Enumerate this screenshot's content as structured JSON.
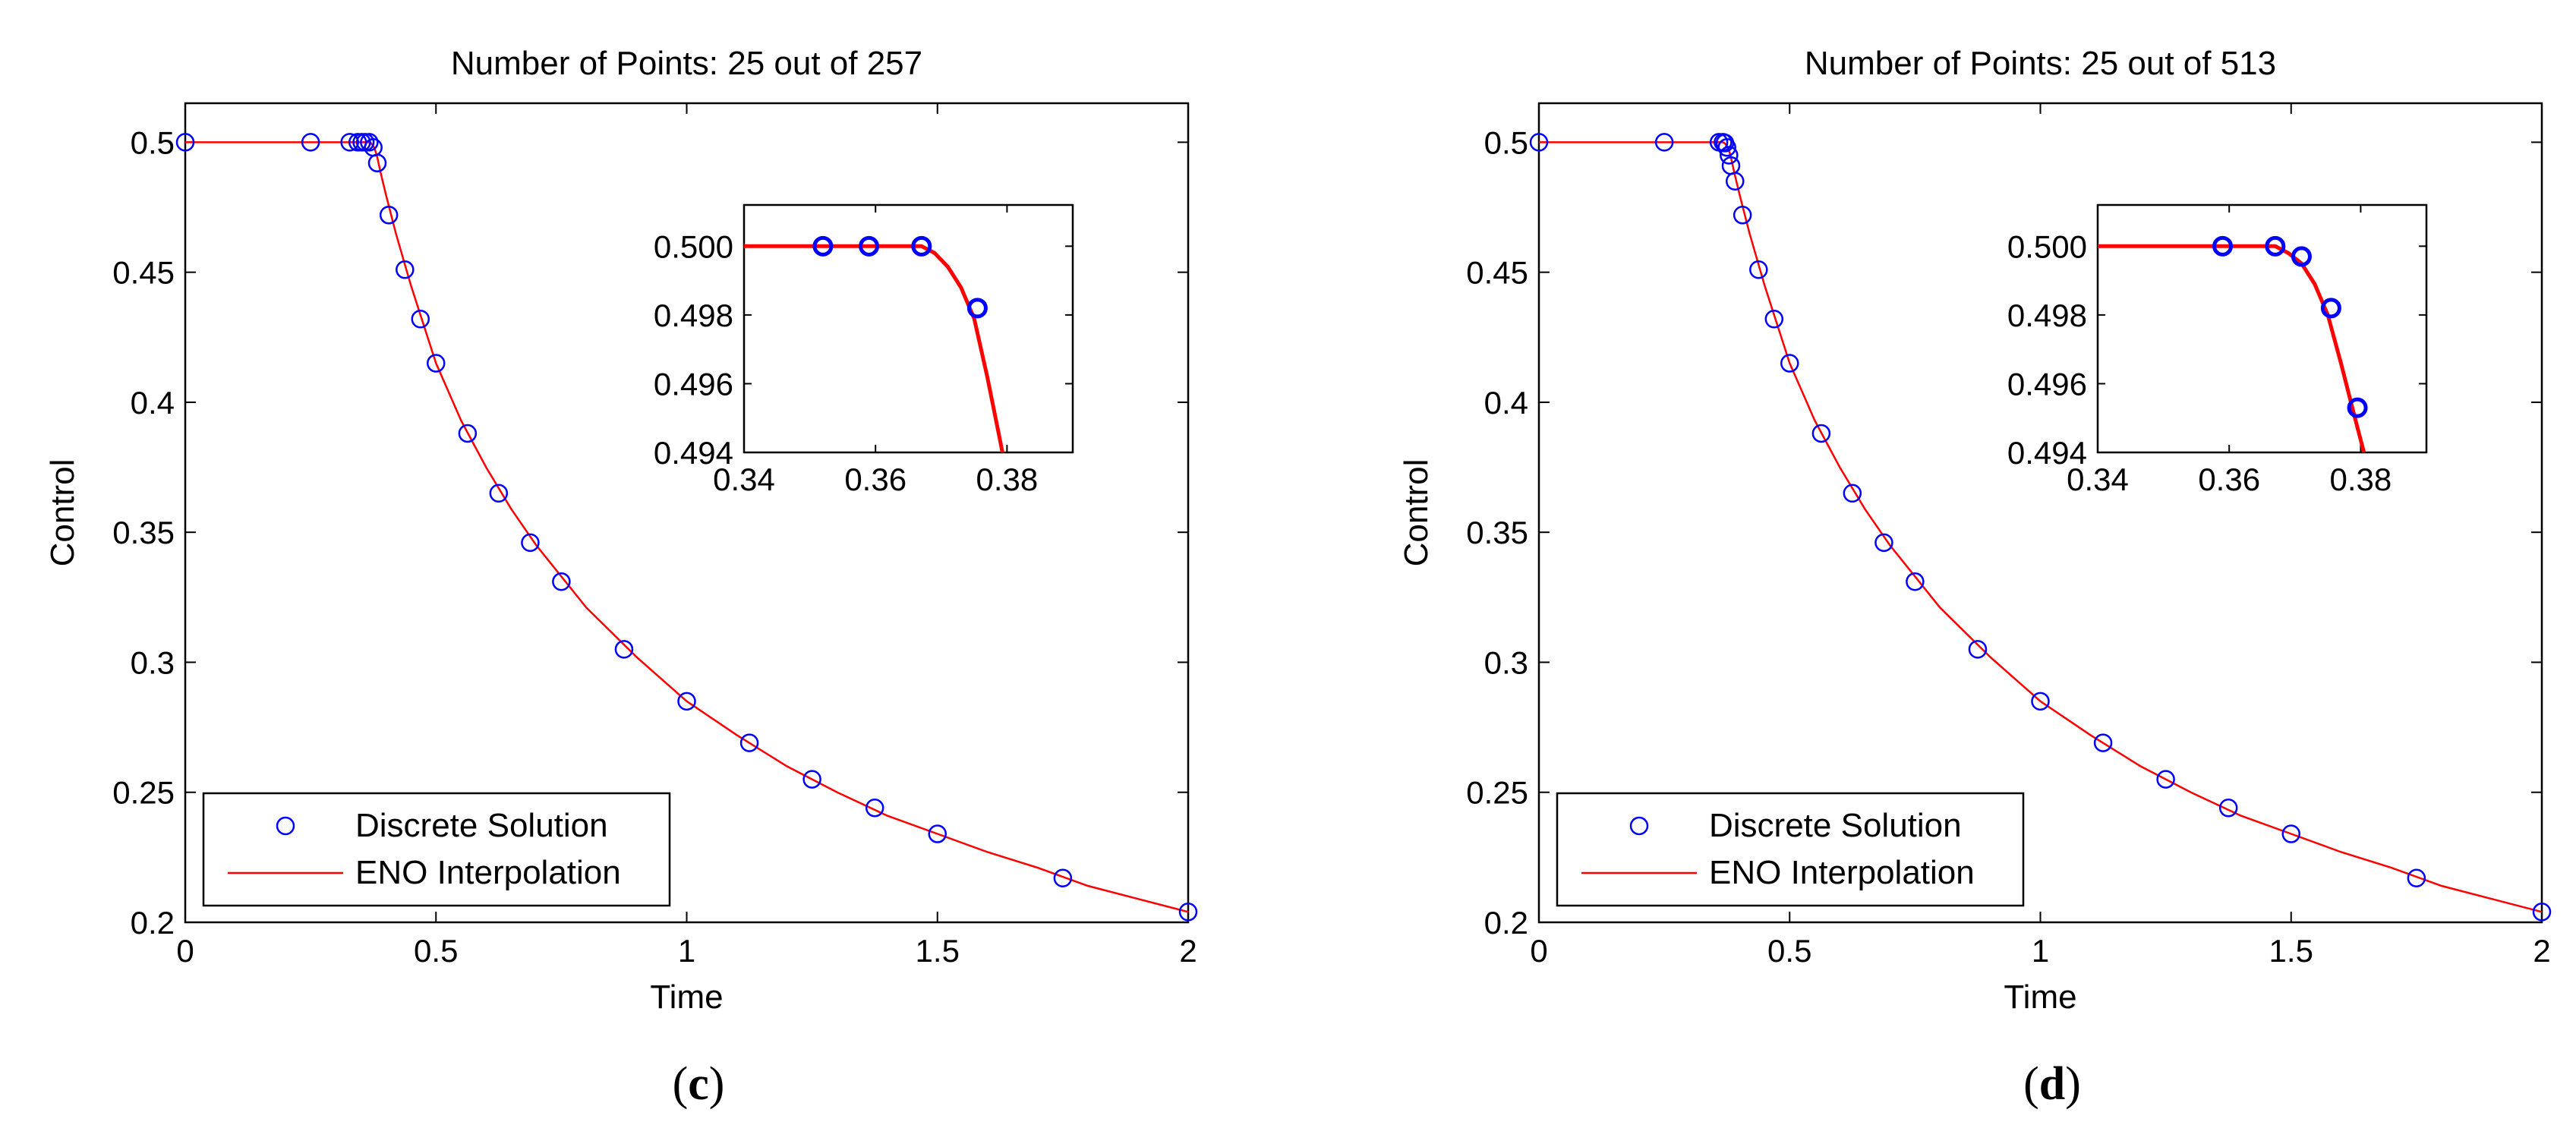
{
  "chart_data": [
    {
      "type": "line",
      "title": "Number of Points: 25 out of 257",
      "xlabel": "Time",
      "ylabel": "Control",
      "xlim": [
        0,
        2
      ],
      "ylim": [
        0.2,
        0.515
      ],
      "xticks": [
        "0",
        "0.5",
        "1",
        "1.5",
        "2"
      ],
      "yticks": [
        "0.2",
        "0.25",
        "0.3",
        "0.35",
        "0.4",
        "0.45",
        "0.5"
      ],
      "caption_open": "(",
      "caption_letter": "c",
      "caption_close": ")",
      "legend": {
        "placement": "bottom-left",
        "markers_label": "Discrete Solution",
        "line_label": "ENO Interpolation"
      },
      "series": [
        {
          "name": "Discrete Solution",
          "style": "markers",
          "color": "#0000ff",
          "x": [
            0,
            0.25,
            0.328,
            0.344,
            0.352,
            0.359,
            0.367,
            0.375,
            0.383,
            0.406,
            0.438,
            0.469,
            0.5,
            0.563,
            0.625,
            0.688,
            0.75,
            0.875,
            1.0,
            1.125,
            1.25,
            1.375,
            1.5,
            1.75,
            2.0
          ],
          "y": [
            0.5,
            0.5,
            0.5,
            0.5,
            0.5,
            0.5,
            0.5,
            0.498,
            0.492,
            0.472,
            0.451,
            0.432,
            0.415,
            0.388,
            0.365,
            0.346,
            0.331,
            0.305,
            0.285,
            0.269,
            0.255,
            0.244,
            0.234,
            0.217,
            0.204
          ]
        },
        {
          "name": "ENO Interpolation",
          "style": "line",
          "color": "#ff0000",
          "x": [
            0,
            0.2,
            0.367,
            0.37,
            0.373,
            0.376,
            0.379,
            0.382,
            0.39,
            0.4,
            0.42,
            0.45,
            0.5,
            0.55,
            0.6,
            0.65,
            0.7,
            0.8,
            0.9,
            1.0,
            1.1,
            1.2,
            1.3,
            1.4,
            1.5,
            1.6,
            1.7,
            1.8,
            1.9,
            2.0
          ],
          "y": [
            0.5,
            0.5,
            0.5,
            0.4997,
            0.4991,
            0.4982,
            0.4968,
            0.495,
            0.488,
            0.48,
            0.465,
            0.445,
            0.415,
            0.393,
            0.375,
            0.359,
            0.345,
            0.321,
            0.302,
            0.285,
            0.272,
            0.26,
            0.25,
            0.241,
            0.234,
            0.227,
            0.221,
            0.214,
            0.209,
            0.204
          ]
        }
      ],
      "inset": {
        "xlim": [
          0.34,
          0.39
        ],
        "ylim": [
          0.494,
          0.5012
        ],
        "xticks": [
          "0.34",
          "0.36",
          "0.38"
        ],
        "yticks": [
          "0.494",
          "0.496",
          "0.498",
          "0.500"
        ],
        "points": {
          "x": [
            0.352,
            0.359,
            0.367,
            0.3755
          ],
          "y": [
            0.5,
            0.5,
            0.5,
            0.4982
          ]
        },
        "line": {
          "x": [
            0.34,
            0.367,
            0.369,
            0.371,
            0.373,
            0.375,
            0.377,
            0.379,
            0.3795
          ],
          "y": [
            0.5,
            0.5,
            0.4998,
            0.4994,
            0.4988,
            0.4979,
            0.4962,
            0.4943,
            0.4938
          ]
        }
      }
    },
    {
      "type": "line",
      "title": "Number of Points: 25 out of 513",
      "xlabel": "Time",
      "ylabel": "Control",
      "xlim": [
        0,
        2
      ],
      "ylim": [
        0.2,
        0.515
      ],
      "xticks": [
        "0",
        "0.5",
        "1",
        "1.5",
        "2"
      ],
      "yticks": [
        "0.2",
        "0.25",
        "0.3",
        "0.35",
        "0.4",
        "0.45",
        "0.5"
      ],
      "caption_open": "(",
      "caption_letter": "d",
      "caption_close": ")",
      "legend": {
        "placement": "bottom-left",
        "markers_label": "Discrete Solution",
        "line_label": "ENO Interpolation"
      },
      "series": [
        {
          "name": "Discrete Solution",
          "style": "markers",
          "color": "#0000ff",
          "x": [
            0,
            0.25,
            0.359,
            0.367,
            0.371,
            0.375,
            0.379,
            0.383,
            0.391,
            0.406,
            0.438,
            0.469,
            0.5,
            0.563,
            0.625,
            0.688,
            0.75,
            0.875,
            1.0,
            1.125,
            1.25,
            1.375,
            1.5,
            1.75,
            2.0
          ],
          "y": [
            0.5,
            0.5,
            0.5,
            0.5,
            0.4997,
            0.498,
            0.495,
            0.491,
            0.485,
            0.472,
            0.451,
            0.432,
            0.415,
            0.388,
            0.365,
            0.346,
            0.331,
            0.305,
            0.285,
            0.269,
            0.255,
            0.244,
            0.234,
            0.217,
            0.204
          ]
        },
        {
          "name": "ENO Interpolation",
          "style": "line",
          "color": "#ff0000",
          "x": [
            0,
            0.2,
            0.367,
            0.37,
            0.373,
            0.376,
            0.379,
            0.382,
            0.39,
            0.4,
            0.42,
            0.45,
            0.5,
            0.55,
            0.6,
            0.65,
            0.7,
            0.8,
            0.9,
            1.0,
            1.1,
            1.2,
            1.3,
            1.4,
            1.5,
            1.6,
            1.7,
            1.8,
            1.9,
            2.0
          ],
          "y": [
            0.5,
            0.5,
            0.5,
            0.4997,
            0.4991,
            0.4982,
            0.4968,
            0.495,
            0.488,
            0.48,
            0.465,
            0.445,
            0.415,
            0.393,
            0.375,
            0.359,
            0.345,
            0.321,
            0.302,
            0.285,
            0.272,
            0.26,
            0.25,
            0.241,
            0.234,
            0.227,
            0.221,
            0.214,
            0.209,
            0.204
          ]
        }
      ],
      "inset": {
        "xlim": [
          0.34,
          0.39
        ],
        "ylim": [
          0.494,
          0.5012
        ],
        "xticks": [
          "0.34",
          "0.36",
          "0.38"
        ],
        "yticks": [
          "0.494",
          "0.496",
          "0.498",
          "0.500"
        ],
        "points": {
          "x": [
            0.359,
            0.367,
            0.371,
            0.3755,
            0.3795
          ],
          "y": [
            0.5,
            0.5,
            0.4997,
            0.4982,
            0.4953
          ]
        },
        "line": {
          "x": [
            0.34,
            0.367,
            0.369,
            0.371,
            0.373,
            0.375,
            0.377,
            0.379,
            0.3805
          ],
          "y": [
            0.5,
            0.5,
            0.4998,
            0.4995,
            0.4989,
            0.498,
            0.4966,
            0.4951,
            0.494
          ]
        }
      }
    }
  ]
}
